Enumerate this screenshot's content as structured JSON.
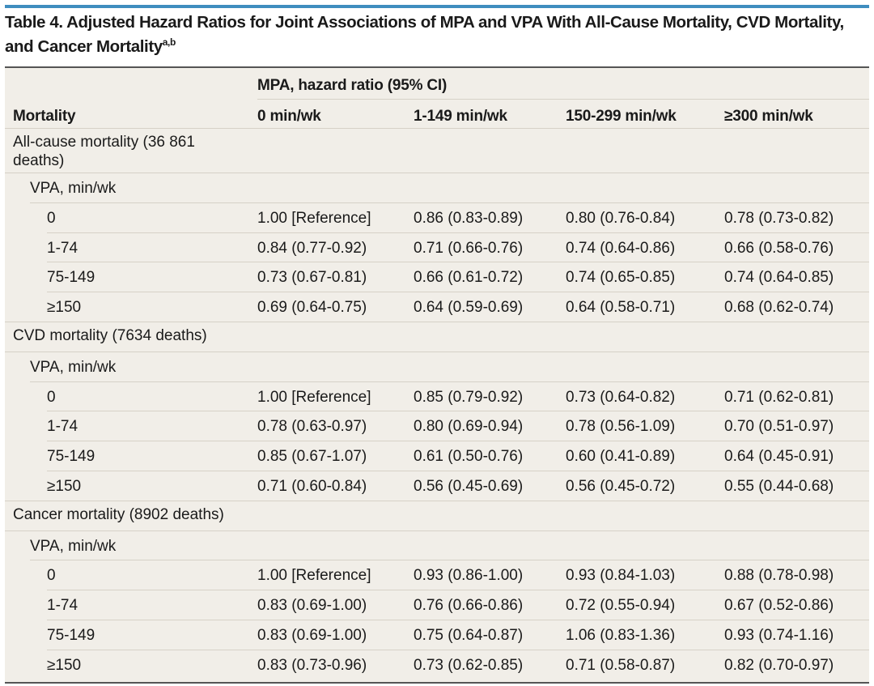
{
  "title": "Table 4. Adjusted Hazard Ratios for Joint Associations of MPA and VPA With All-Cause Mortality, CVD Mortality, and Cancer Mortality",
  "title_sup": "a,b",
  "table": {
    "header": {
      "group": "MPA, hazard ratio (95% CI)",
      "columns": [
        "Mortality",
        "0 min/wk",
        "1-149 min/wk",
        "150-299 min/wk",
        "≥300 min/wk"
      ]
    },
    "sections": [
      {
        "label": "All-cause mortality (36 861 deaths)",
        "sublabel": "VPA, min/wk",
        "rows": [
          [
            "0",
            "1.00 [Reference]",
            "0.86 (0.83-0.89)",
            "0.80 (0.76-0.84)",
            "0.78 (0.73-0.82)"
          ],
          [
            "1-74",
            "0.84 (0.77-0.92)",
            "0.71 (0.66-0.76)",
            "0.74 (0.64-0.86)",
            "0.66 (0.58-0.76)"
          ],
          [
            "75-149",
            "0.73 (0.67-0.81)",
            "0.66 (0.61-0.72)",
            "0.74 (0.65-0.85)",
            "0.74 (0.64-0.85)"
          ],
          [
            "≥150",
            "0.69 (0.64-0.75)",
            "0.64 (0.59-0.69)",
            "0.64 (0.58-0.71)",
            "0.68 (0.62-0.74)"
          ]
        ]
      },
      {
        "label": "CVD mortality (7634 deaths)",
        "sublabel": "VPA, min/wk",
        "rows": [
          [
            "0",
            "1.00 [Reference]",
            "0.85 (0.79-0.92)",
            "0.73 (0.64-0.82)",
            "0.71 (0.62-0.81)"
          ],
          [
            "1-74",
            "0.78 (0.63-0.97)",
            "0.80 (0.69-0.94)",
            "0.78 (0.56-1.09)",
            "0.70 (0.51-0.97)"
          ],
          [
            "75-149",
            "0.85 (0.67-1.07)",
            "0.61 (0.50-0.76)",
            "0.60 (0.41-0.89)",
            "0.64 (0.45-0.91)"
          ],
          [
            "≥150",
            "0.71 (0.60-0.84)",
            "0.56 (0.45-0.69)",
            "0.56 (0.45-0.72)",
            "0.55 (0.44-0.68)"
          ]
        ]
      },
      {
        "label": "Cancer mortality (8902 deaths)",
        "sublabel": "VPA, min/wk",
        "rows": [
          [
            "0",
            "1.00 [Reference]",
            "0.93 (0.86-1.00)",
            "0.93 (0.84-1.03)",
            "0.88 (0.78-0.98)"
          ],
          [
            "1-74",
            "0.83 (0.69-1.00)",
            "0.76 (0.66-0.86)",
            "0.72 (0.55-0.94)",
            "0.67 (0.52-0.86)"
          ],
          [
            "75-149",
            "0.83 (0.69-1.00)",
            "0.75 (0.64-0.87)",
            "1.06 (0.83-1.36)",
            "0.93 (0.74-1.16)"
          ],
          [
            "≥150",
            "0.83 (0.73-0.96)",
            "0.73 (0.62-0.85)",
            "0.71 (0.58-0.87)",
            "0.82 (0.70-0.97)"
          ]
        ]
      }
    ]
  }
}
